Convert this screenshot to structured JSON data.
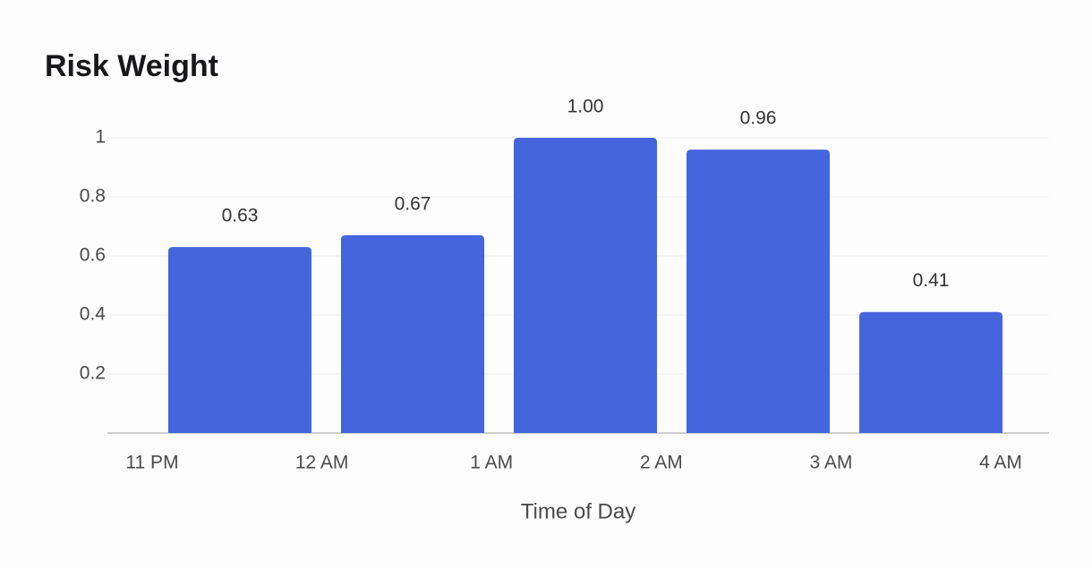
{
  "chart_data": {
    "type": "histogram",
    "title": "Risk Weight",
    "x_label": "Time of Day",
    "bins": [
      "11 PM",
      "12 AM",
      "1 AM",
      "2 AM",
      "3 AM",
      "4 AM"
    ],
    "values": [
      0.63,
      0.67,
      1,
      0.96,
      0.41
    ],
    "value_labels": [
      "0.63",
      "0.67",
      "1.00",
      "0.96",
      "0.41"
    ],
    "color": "#4565dd",
    "ylim": [
      0,
      1
    ],
    "yticks": [
      0.2,
      0.4,
      0.6,
      0.8,
      1
    ],
    "grid": true
  }
}
